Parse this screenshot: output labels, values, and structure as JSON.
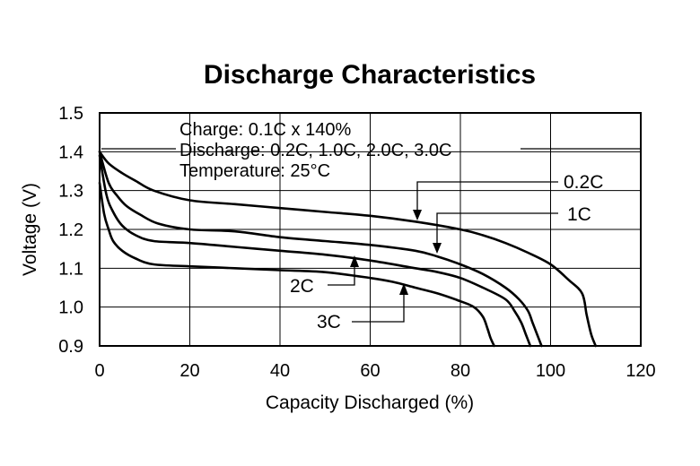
{
  "chart_data": {
    "type": "line",
    "title": "Discharge Characteristics",
    "xlabel": "Capacity Discharged (%)",
    "ylabel": "Voltage (V)",
    "xlim": [
      0,
      120
    ],
    "ylim": [
      0.9,
      1.5
    ],
    "x_ticks": [
      "0",
      "20",
      "40",
      "60",
      "80",
      "100",
      "120"
    ],
    "y_ticks": [
      "1.5",
      "1.4",
      "1.3",
      "1.2",
      "1.1",
      "1.0",
      "0.9"
    ],
    "grid": true,
    "annotations": [
      "Charge: 0.1C x 140%",
      "Discharge: 0.2C, 1.0C, 2.0C, 3.0C",
      "Temperature: 25°C"
    ],
    "series": [
      {
        "name": "0.2C",
        "x": [
          0,
          2,
          5,
          8,
          12,
          20,
          30,
          40,
          50,
          60,
          70,
          80,
          85,
          90,
          95,
          100,
          104,
          107,
          108,
          109,
          110
        ],
        "y": [
          1.4,
          1.37,
          1.345,
          1.325,
          1.3,
          1.275,
          1.265,
          1.255,
          1.245,
          1.235,
          1.22,
          1.2,
          1.185,
          1.165,
          1.14,
          1.11,
          1.07,
          1.035,
          0.98,
          0.93,
          0.9
        ]
      },
      {
        "name": "1C",
        "x": [
          0,
          2,
          4,
          6,
          9,
          13,
          20,
          30,
          40,
          50,
          60,
          70,
          75,
          80,
          85,
          90,
          93,
          95,
          96,
          97,
          98
        ],
        "y": [
          1.4,
          1.32,
          1.285,
          1.26,
          1.238,
          1.215,
          1.2,
          1.195,
          1.18,
          1.17,
          1.16,
          1.145,
          1.13,
          1.11,
          1.085,
          1.05,
          1.02,
          0.99,
          0.96,
          0.93,
          0.9
        ]
      },
      {
        "name": "2C",
        "x": [
          0,
          1.5,
          3,
          5,
          8,
          12,
          20,
          30,
          40,
          50,
          60,
          70,
          75,
          80,
          85,
          90,
          92,
          93.5,
          94.5,
          95.5
        ],
        "y": [
          1.39,
          1.29,
          1.245,
          1.21,
          1.185,
          1.17,
          1.165,
          1.155,
          1.145,
          1.135,
          1.12,
          1.1,
          1.09,
          1.075,
          1.05,
          1.02,
          0.99,
          0.96,
          0.93,
          0.9
        ]
      },
      {
        "name": "3C",
        "x": [
          0,
          1,
          2,
          3,
          5,
          8,
          12,
          20,
          30,
          40,
          50,
          60,
          65,
          70,
          75,
          80,
          83,
          85,
          86,
          86.7,
          87.5
        ],
        "y": [
          1.32,
          1.24,
          1.2,
          1.17,
          1.145,
          1.125,
          1.11,
          1.105,
          1.1,
          1.095,
          1.09,
          1.075,
          1.065,
          1.05,
          1.035,
          1.015,
          1.0,
          0.975,
          0.945,
          0.92,
          0.9
        ]
      }
    ]
  }
}
